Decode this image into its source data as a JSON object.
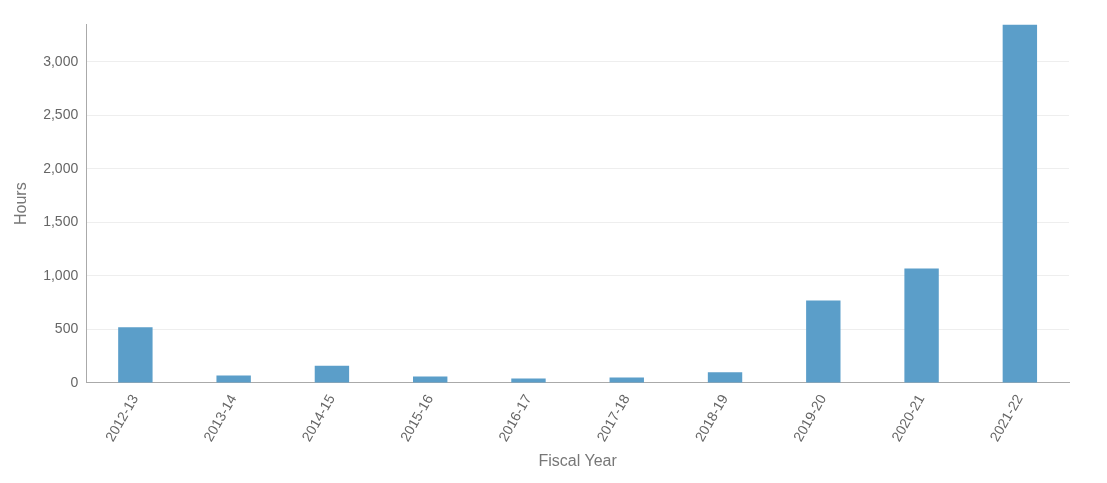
{
  "chart_data": {
    "type": "bar",
    "xlabel": "Fiscal Year",
    "ylabel": "Hours",
    "categories": [
      "2012-13",
      "2013-14",
      "2014-15",
      "2015-16",
      "2016-17",
      "2017-18",
      "2018-19",
      "2019-20",
      "2020-21",
      "2021-22"
    ],
    "values": [
      520,
      70,
      160,
      60,
      40,
      50,
      100,
      770,
      1070,
      3350
    ],
    "color": "#5b9ec9",
    "ylim": [
      0,
      3350
    ],
    "yticks": [
      0,
      500,
      {
        "value": 1000,
        "label": "1,000"
      },
      {
        "value": 1500,
        "label": "1,500"
      },
      {
        "value": 2000,
        "label": "2,000"
      },
      {
        "value": 2500,
        "label": "2,500"
      },
      {
        "value": 3000,
        "label": "3,000"
      }
    ],
    "grid": "y",
    "legend": false
  }
}
